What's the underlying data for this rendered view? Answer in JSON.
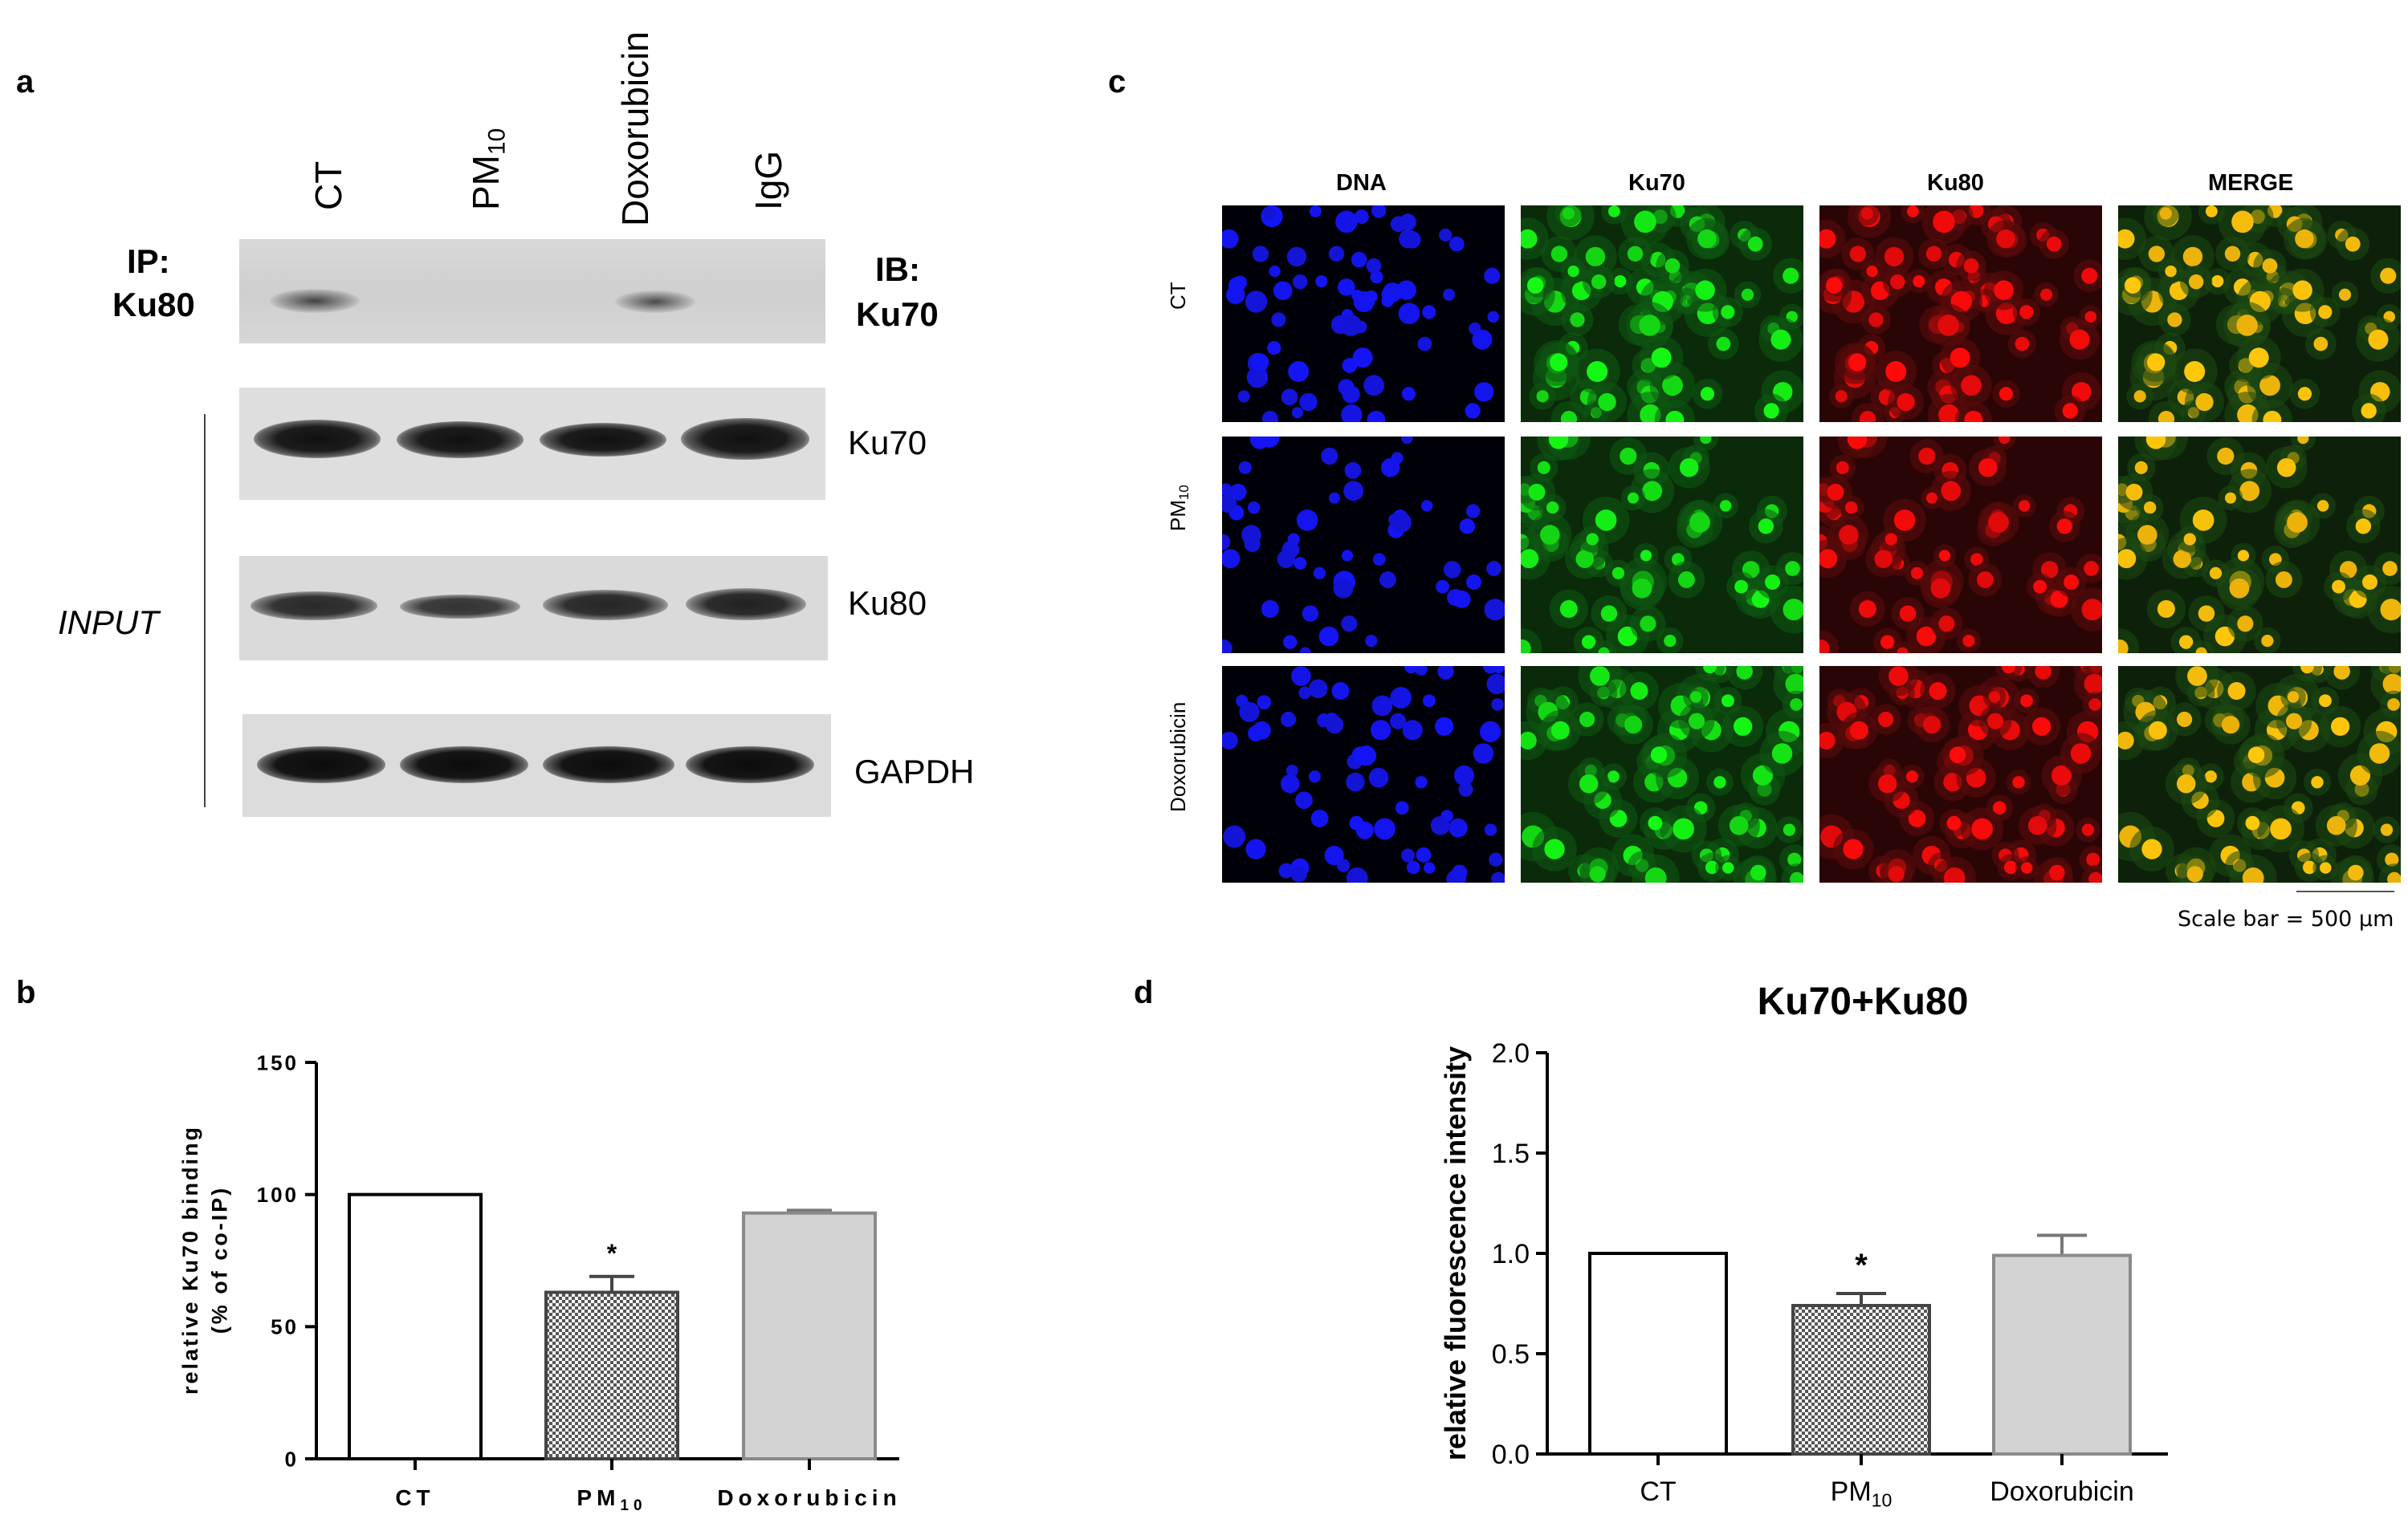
{
  "panel_letters": [
    "a",
    "b",
    "c",
    "d"
  ],
  "panel_a": {
    "lanes": [
      {
        "base": "CT",
        "sub": ""
      },
      {
        "base": "PM",
        "sub": "10"
      },
      {
        "base": "Doxorubicin",
        "sub": ""
      },
      {
        "base": "IgG",
        "sub": ""
      }
    ],
    "ip_label_1": "IP:",
    "ip_label_2": "Ku80",
    "ib_label_1": "IB:",
    "ib_label_2": "Ku70",
    "input_label": "INPUT",
    "blot_labels": [
      "Ku70",
      "Ku80",
      "GAPDH"
    ]
  },
  "panel_c": {
    "channels": [
      {
        "label": "DNA",
        "color": "#2f6fd0"
      },
      {
        "label": "Ku70",
        "color": "#3cc43c"
      },
      {
        "label": "Ku80",
        "color": "#e8101e"
      },
      {
        "label": "MERGE",
        "color": "#f6c53a"
      }
    ],
    "rows": [
      {
        "base": "CT",
        "sub": ""
      },
      {
        "base": "PM",
        "sub": "10"
      },
      {
        "base": "Doxorubicin",
        "sub": ""
      }
    ],
    "scale_bar": "Scale bar = 500 μm"
  },
  "chart_data": [
    {
      "panel": "b",
      "type": "bar",
      "categories": [
        "CT",
        "PM10",
        "Doxorubicin"
      ],
      "category_labels": [
        {
          "base": "CT",
          "sub": ""
        },
        {
          "base": "PM",
          "sub": "10"
        },
        {
          "base": "Doxorubicin",
          "sub": ""
        }
      ],
      "values": [
        100,
        63,
        93
      ],
      "errors": [
        0,
        6,
        1
      ],
      "significance": [
        "",
        "*",
        ""
      ],
      "title": "",
      "ylabel_line1": "relative Ku70 binding",
      "ylabel_line2": "(% of co-IP)",
      "ylim": [
        0,
        150
      ],
      "yticks": [
        0,
        50,
        100,
        150
      ],
      "bar_fills": [
        "white",
        "checker",
        "#d3d3d3"
      ]
    },
    {
      "panel": "d",
      "type": "bar",
      "categories": [
        "CT",
        "PM10",
        "Doxorubicin"
      ],
      "category_labels": [
        {
          "base": "CT",
          "sub": ""
        },
        {
          "base": "PM",
          "sub": "10"
        },
        {
          "base": "Doxorubicin",
          "sub": ""
        }
      ],
      "values": [
        1.0,
        0.74,
        0.99
      ],
      "errors": [
        0,
        0.06,
        0.1
      ],
      "significance": [
        "",
        "*",
        ""
      ],
      "title": "Ku70+Ku80",
      "ylabel": "relative fluorescence intensity",
      "ylim": [
        0,
        2.0
      ],
      "yticks": [
        0.0,
        0.5,
        1.0,
        1.5,
        2.0
      ],
      "bar_fills": [
        "white",
        "checker",
        "#d3d3d3"
      ]
    }
  ]
}
